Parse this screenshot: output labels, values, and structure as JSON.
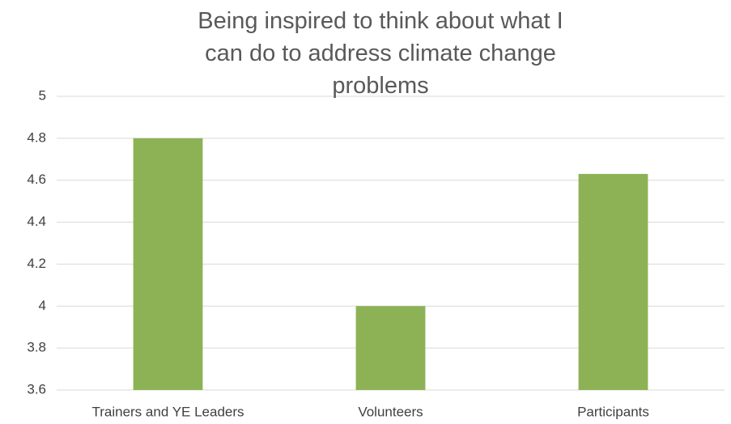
{
  "chart_data": {
    "type": "bar",
    "title": "Being inspired to think about what I can do to address climate change problems",
    "categories": [
      "Trainers and YE Leaders",
      "Volunteers",
      "Participants"
    ],
    "values": [
      4.8,
      4,
      4.63
    ],
    "color": "#8db255",
    "ylim": [
      3.6,
      5
    ],
    "yticks": [
      3.6,
      3.8,
      4,
      4.2,
      4.4,
      4.6,
      4.8,
      5
    ],
    "grid": true
  }
}
